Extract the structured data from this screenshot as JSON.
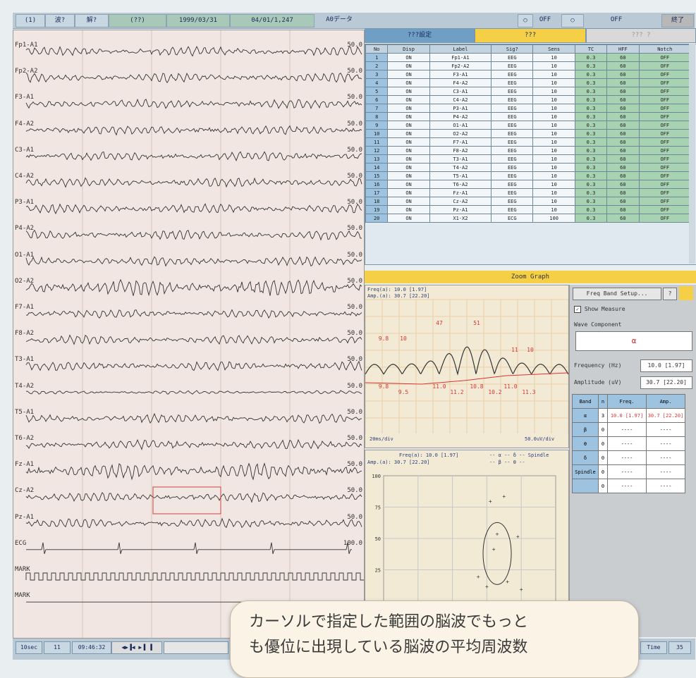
{
  "toolbar": {
    "items": [
      "(1)",
      "波?",
      "解?",
      "(??)",
      "1999/03/31",
      "04/01/1,247",
      "A0データ"
    ],
    "right": [
      "○",
      "OFF",
      "○",
      "OFF",
      "終了"
    ]
  },
  "eeg": {
    "channels_left": [
      "Fp1-A1",
      "Fp2-A2",
      "F3-A1",
      "F4-A2",
      "C3-A1",
      "C4-A2",
      "P3-A1",
      "P4-A2",
      "O1-A1",
      "O2-A2",
      "F7-A1",
      "F8-A2",
      "T3-A1",
      "T4-A2",
      "T5-A1",
      "T6-A2",
      "Fz-A1",
      "Cz-A2",
      "Pz-A1",
      "ECG",
      "MARK",
      "MARK"
    ],
    "channels_right": [
      "50.0",
      "50.0",
      "50.0",
      "50.0",
      "50.0",
      "50.0",
      "50.0",
      "50.0",
      "50.0",
      "50.0",
      "50.0",
      "50.0",
      "50.0",
      "50.0",
      "50.0",
      "50.0",
      "50.0",
      "50.0",
      "50.0",
      "100.0"
    ]
  },
  "tabs": {
    "t1": "???設定",
    "t2": "???",
    "t3": "??? ?"
  },
  "channel_table": {
    "headers": [
      "No",
      "Disp",
      "Label",
      "Sig?",
      "Sens",
      "TC",
      "HFF",
      "Notch"
    ],
    "rows": [
      [
        "1",
        "ON",
        "Fp1-A1",
        "EEG",
        "10",
        "0.3",
        "60",
        "OFF"
      ],
      [
        "2",
        "ON",
        "Fp2-A2",
        "EEG",
        "10",
        "0.3",
        "60",
        "OFF"
      ],
      [
        "3",
        "ON",
        "F3-A1",
        "EEG",
        "10",
        "0.3",
        "60",
        "OFF"
      ],
      [
        "4",
        "ON",
        "F4-A2",
        "EEG",
        "10",
        "0.3",
        "60",
        "OFF"
      ],
      [
        "5",
        "ON",
        "C3-A1",
        "EEG",
        "10",
        "0.3",
        "60",
        "OFF"
      ],
      [
        "6",
        "ON",
        "C4-A2",
        "EEG",
        "10",
        "0.3",
        "60",
        "OFF"
      ],
      [
        "7",
        "ON",
        "P3-A1",
        "EEG",
        "10",
        "0.3",
        "60",
        "OFF"
      ],
      [
        "8",
        "ON",
        "P4-A2",
        "EEG",
        "10",
        "0.3",
        "60",
        "OFF"
      ],
      [
        "9",
        "ON",
        "O1-A1",
        "EEG",
        "10",
        "0.3",
        "60",
        "OFF"
      ],
      [
        "10",
        "ON",
        "O2-A2",
        "EEG",
        "10",
        "0.3",
        "60",
        "OFF"
      ],
      [
        "11",
        "ON",
        "F7-A1",
        "EEG",
        "10",
        "0.3",
        "60",
        "OFF"
      ],
      [
        "12",
        "ON",
        "F8-A2",
        "EEG",
        "10",
        "0.3",
        "60",
        "OFF"
      ],
      [
        "13",
        "ON",
        "T3-A1",
        "EEG",
        "10",
        "0.3",
        "60",
        "OFF"
      ],
      [
        "14",
        "ON",
        "T4-A2",
        "EEG",
        "10",
        "0.3",
        "60",
        "OFF"
      ],
      [
        "15",
        "ON",
        "T5-A1",
        "EEG",
        "10",
        "0.3",
        "60",
        "OFF"
      ],
      [
        "16",
        "ON",
        "T6-A2",
        "EEG",
        "10",
        "0.3",
        "60",
        "OFF"
      ],
      [
        "17",
        "ON",
        "Fz-A1",
        "EEG",
        "10",
        "0.3",
        "60",
        "OFF"
      ],
      [
        "18",
        "ON",
        "Cz-A2",
        "EEG",
        "10",
        "0.3",
        "60",
        "OFF"
      ],
      [
        "19",
        "ON",
        "Pz-A1",
        "EEG",
        "10",
        "0.3",
        "60",
        "OFF"
      ],
      [
        "20",
        "ON",
        "X1-X2",
        "ECG",
        "100",
        "0.3",
        "60",
        "OFF"
      ]
    ]
  },
  "zoom_header": "Zoom Graph",
  "spectrum": {
    "freq_line": "Freq(a): 10.0 [1.97]",
    "amp_line": "Amp.(a): 30.7 [22.20]",
    "x_left": "20ms/div",
    "x_right": "50.0uV/div",
    "peak_labels": [
      "9.8",
      "10",
      "47",
      "51",
      "11",
      "10"
    ],
    "trough_labels": [
      "9.8",
      "9.5",
      "11.0",
      "11.2",
      "10.8",
      "10.2",
      "11.0",
      "11.3"
    ]
  },
  "scatter": {
    "freq_line": "Freq(a): 10.0 [1.97]",
    "amp_line": "Amp.(a): 30.7 [22.20]",
    "legend1": "-- α  -- δ  -- Spindle",
    "legend2": "-- β  -- θ  --",
    "y_ticks": [
      "100",
      "75",
      "50",
      "25"
    ],
    "points": [
      [
        0.62,
        0.78
      ],
      [
        0.7,
        0.82
      ],
      [
        0.66,
        0.52
      ],
      [
        0.64,
        0.4
      ],
      [
        0.78,
        0.5
      ],
      [
        0.55,
        0.18
      ],
      [
        0.72,
        0.14
      ],
      [
        0.6,
        0.1
      ],
      [
        0.8,
        0.08
      ]
    ]
  },
  "right_panel": {
    "freq_band_btn": "Freq Band Setup...",
    "q_btn": "?",
    "show_measure": "Show Measure",
    "wave_label": "Wave Component",
    "wave_value": "α",
    "freq_label": "Frequency (Hz)",
    "freq_value": "10.0 [1.97]",
    "amp_label": "Amplitude (uV)",
    "amp_value": "30.7 [22.20]",
    "band_headers": [
      "Band",
      "n",
      "Freq.",
      "Amp."
    ],
    "band_rows": [
      [
        "α",
        "3",
        "10.0 [1.97]",
        "30.7 [22.20]"
      ],
      [
        "β",
        "0",
        "----",
        "----"
      ],
      [
        "θ",
        "0",
        "----",
        "----"
      ],
      [
        "δ",
        "0",
        "----",
        "----"
      ],
      [
        "Spindle",
        "0",
        "----",
        "----"
      ],
      [
        "",
        "0",
        "----",
        "----"
      ]
    ]
  },
  "bottombar": {
    "b1": "10sec",
    "b2": "11",
    "b3": "09:46:32",
    "b4": "◀▶▐◀ ▶▐ ▐",
    "r1": "Time",
    "r2": "35"
  },
  "caption": {
    "line1": "カーソルで指定した範囲の脳波でもっと",
    "line2": "も優位に出現している脳波の平均周波数"
  }
}
